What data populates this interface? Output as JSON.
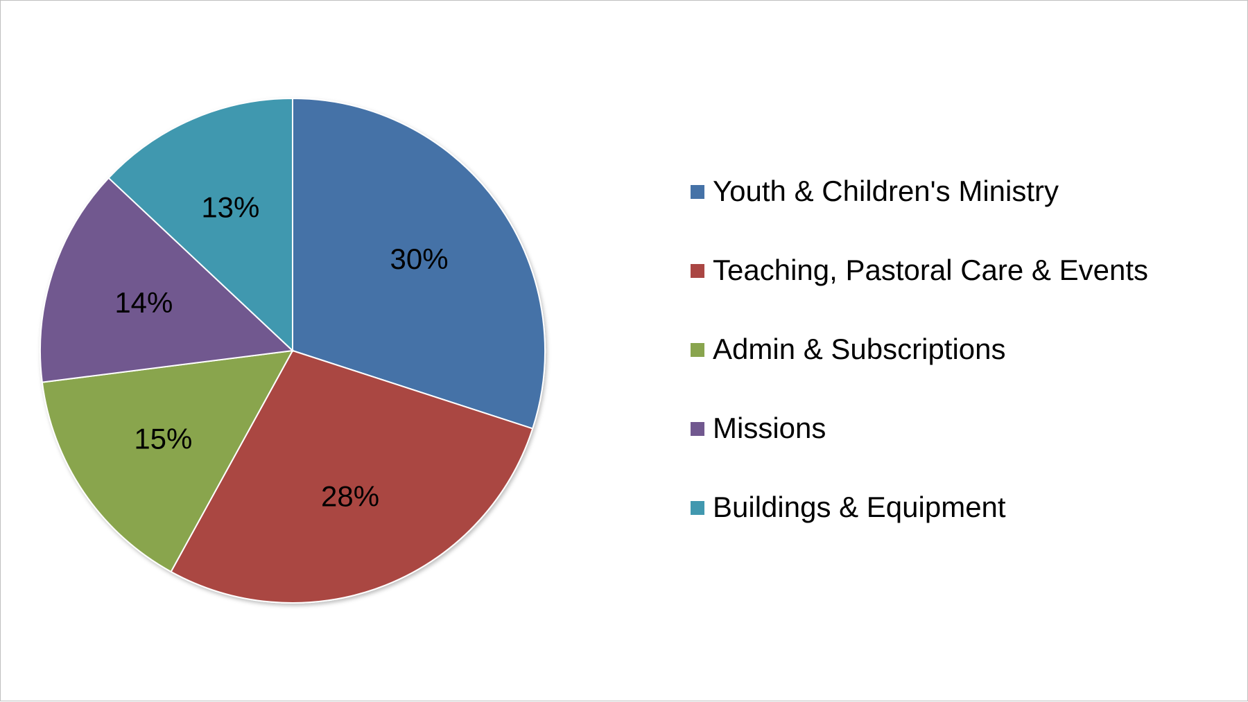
{
  "chart_data": {
    "type": "pie",
    "title": "",
    "legend_position": "right",
    "slices": [
      {
        "name": "Youth & Children's Ministry",
        "value": 30,
        "label": "30%",
        "color": "#4572a7"
      },
      {
        "name": "Teaching, Pastoral Care & Events",
        "value": 28,
        "label": "28%",
        "color": "#aa4643"
      },
      {
        "name": "Admin & Subscriptions",
        "value": 15,
        "label": "15%",
        "color": "#89a54e"
      },
      {
        "name": "Missions",
        "value": 14,
        "label": "14%",
        "color": "#71588f"
      },
      {
        "name": "Buildings & Equipment",
        "value": 13,
        "label": "13%",
        "color": "#4198af"
      }
    ]
  }
}
